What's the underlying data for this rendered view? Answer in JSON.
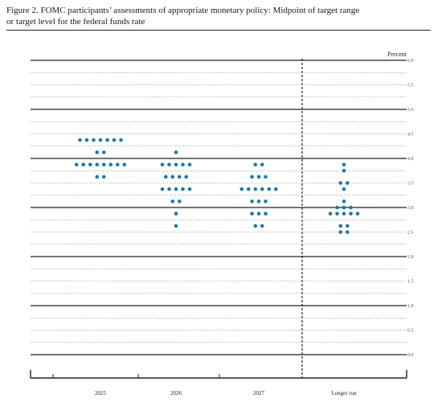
{
  "title": {
    "line1": "Figure 2.  FOMC participants’ assessments of appropriate monetary policy:  Midpoint of target range",
    "line2": "or target level for the federal funds rate"
  },
  "colors": {
    "dot": "#1f77a4",
    "axis": "#222222",
    "grid": "#555555"
  },
  "chart_data": {
    "type": "scatter",
    "title": "Figure 2.  FOMC participants’ assessments of appropriate monetary policy:  Midpoint of target range or target level for the federal funds rate",
    "ylabel": "Percent",
    "ylim": [
      0.0,
      6.0
    ],
    "y_ticks": [
      "0.0",
      "0.5",
      "1.0",
      "1.5",
      "2.0",
      "2.5",
      "3.0",
      "3.5",
      "4.0",
      "4.5",
      "5.0",
      "5.5",
      "6.0"
    ],
    "categories": [
      "2025",
      "2026",
      "2027",
      "Longer run"
    ],
    "grid": true,
    "dot_counts": [
      {
        "category": "2025",
        "points": [
          {
            "y": 4.375,
            "n": 7
          },
          {
            "y": 4.125,
            "n": 2
          },
          {
            "y": 3.875,
            "n": 8
          },
          {
            "y": 3.625,
            "n": 2
          }
        ]
      },
      {
        "category": "2026",
        "points": [
          {
            "y": 4.125,
            "n": 1
          },
          {
            "y": 3.875,
            "n": 5
          },
          {
            "y": 3.625,
            "n": 4
          },
          {
            "y": 3.375,
            "n": 5
          },
          {
            "y": 3.125,
            "n": 2
          },
          {
            "y": 2.875,
            "n": 1
          },
          {
            "y": 2.625,
            "n": 1
          }
        ]
      },
      {
        "category": "2027",
        "points": [
          {
            "y": 3.875,
            "n": 2
          },
          {
            "y": 3.625,
            "n": 3
          },
          {
            "y": 3.375,
            "n": 6
          },
          {
            "y": 3.125,
            "n": 3
          },
          {
            "y": 2.875,
            "n": 3
          },
          {
            "y": 2.625,
            "n": 2
          }
        ]
      },
      {
        "category": "Longer run",
        "points": [
          {
            "y": 3.875,
            "n": 1
          },
          {
            "y": 3.75,
            "n": 1
          },
          {
            "y": 3.5,
            "n": 2
          },
          {
            "y": 3.375,
            "n": 1
          },
          {
            "y": 3.125,
            "n": 1
          },
          {
            "y": 3.0,
            "n": 3
          },
          {
            "y": 2.875,
            "n": 5
          },
          {
            "y": 2.625,
            "n": 2
          },
          {
            "y": 2.5,
            "n": 2
          }
        ]
      }
    ]
  }
}
